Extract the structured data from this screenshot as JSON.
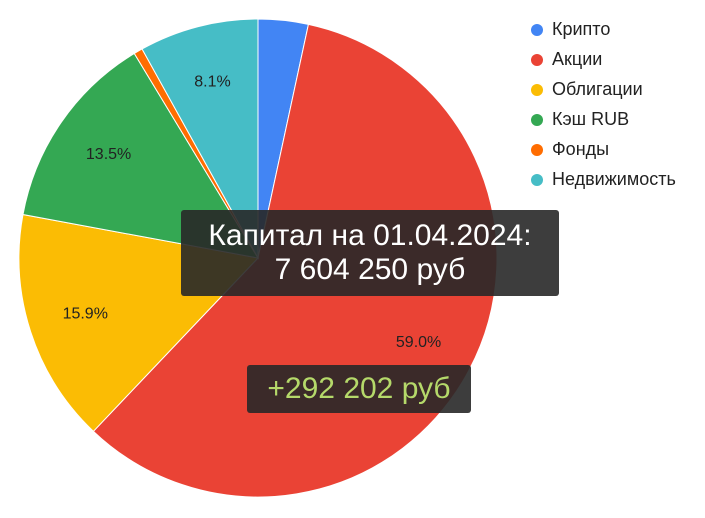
{
  "chart_data": {
    "type": "pie",
    "title": "",
    "legend_position": "right",
    "slices": [
      {
        "name": "Крипто",
        "value": 3.4,
        "color": "#4285f4",
        "label": ""
      },
      {
        "name": "Акции",
        "value": 59.0,
        "color": "#ea4335",
        "label": "59.0%"
      },
      {
        "name": "Облигации",
        "value": 15.9,
        "color": "#fbbc04",
        "label": "15.9%"
      },
      {
        "name": "Кэш RUB",
        "value": 13.5,
        "color": "#34a853",
        "label": "13.5%"
      },
      {
        "name": "Фонды",
        "value": 0.6,
        "color": "#ff6d01",
        "label": ""
      },
      {
        "name": "Недвижимость",
        "value": 8.1,
        "color": "#46bdc6",
        "label": "8.1%"
      }
    ]
  },
  "annotations": {
    "capital_line1": "Капитал на 01.04.2024:",
    "capital_line2": "7 604 250 руб",
    "gain": "+292 202 руб",
    "gain_color": "#b5d96a"
  }
}
